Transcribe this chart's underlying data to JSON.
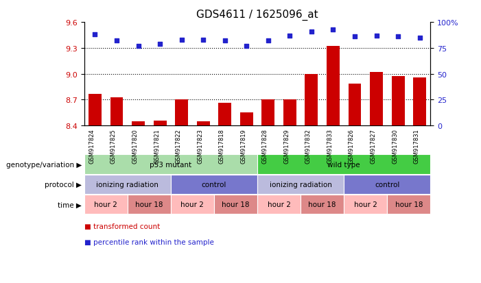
{
  "title": "GDS4611 / 1625096_at",
  "samples": [
    "GSM917824",
    "GSM917825",
    "GSM917820",
    "GSM917821",
    "GSM917822",
    "GSM917823",
    "GSM917818",
    "GSM917819",
    "GSM917828",
    "GSM917829",
    "GSM917832",
    "GSM917833",
    "GSM917826",
    "GSM917827",
    "GSM917830",
    "GSM917831"
  ],
  "bar_values": [
    8.77,
    8.73,
    8.45,
    8.46,
    8.7,
    8.45,
    8.66,
    8.55,
    8.7,
    8.7,
    9.0,
    9.32,
    8.89,
    9.02,
    8.97,
    8.96
  ],
  "dot_values": [
    88,
    82,
    77,
    79,
    83,
    83,
    82,
    77,
    82,
    87,
    91,
    93,
    86,
    87,
    86,
    85
  ],
  "ylim_left": [
    8.4,
    9.6
  ],
  "ylim_right": [
    0,
    100
  ],
  "yticks_left": [
    8.4,
    8.7,
    9.0,
    9.3,
    9.6
  ],
  "yticks_right": [
    0,
    25,
    50,
    75,
    100
  ],
  "ytick_labels_right": [
    "0",
    "25",
    "50",
    "75",
    "100%"
  ],
  "grid_vals": [
    8.7,
    9.0,
    9.3
  ],
  "bar_color": "#cc0000",
  "dot_color": "#2222cc",
  "plot_bg": "#ffffff",
  "genotype_groups": [
    {
      "label": "p53 mutant",
      "start": 0,
      "end": 7,
      "color": "#aaddaa"
    },
    {
      "label": "wild type",
      "start": 8,
      "end": 15,
      "color": "#44cc44"
    }
  ],
  "protocol_groups": [
    {
      "label": "ionizing radiation",
      "start": 0,
      "end": 3,
      "color": "#bbbbdd"
    },
    {
      "label": "control",
      "start": 4,
      "end": 7,
      "color": "#7777cc"
    },
    {
      "label": "ionizing radiation",
      "start": 8,
      "end": 11,
      "color": "#bbbbdd"
    },
    {
      "label": "control",
      "start": 12,
      "end": 15,
      "color": "#7777cc"
    }
  ],
  "time_groups": [
    {
      "label": "hour 2",
      "start": 0,
      "end": 1,
      "color": "#ffbbbb"
    },
    {
      "label": "hour 18",
      "start": 2,
      "end": 3,
      "color": "#dd8888"
    },
    {
      "label": "hour 2",
      "start": 4,
      "end": 5,
      "color": "#ffbbbb"
    },
    {
      "label": "hour 18",
      "start": 6,
      "end": 7,
      "color": "#dd8888"
    },
    {
      "label": "hour 2",
      "start": 8,
      "end": 9,
      "color": "#ffbbbb"
    },
    {
      "label": "hour 18",
      "start": 10,
      "end": 11,
      "color": "#dd8888"
    },
    {
      "label": "hour 2",
      "start": 12,
      "end": 13,
      "color": "#ffbbbb"
    },
    {
      "label": "hour 18",
      "start": 14,
      "end": 15,
      "color": "#dd8888"
    }
  ],
  "row_labels": [
    "genotype/variation",
    "protocol",
    "time"
  ],
  "legend_red": "transformed count",
  "legend_blue": "percentile rank within the sample"
}
